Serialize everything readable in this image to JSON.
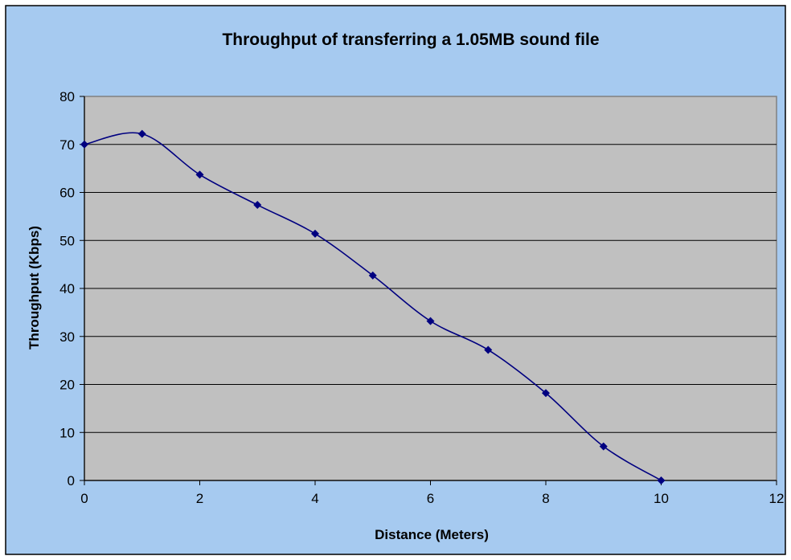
{
  "chart_data": {
    "type": "line",
    "title": "Throughput of transferring a 1.05MB sound file",
    "xlabel": "Distance (Meters)",
    "ylabel": "Throughput (Kbps)",
    "xlim": [
      0,
      12
    ],
    "ylim": [
      0,
      80
    ],
    "xticks": [
      0,
      2,
      4,
      6,
      8,
      10,
      12
    ],
    "yticks": [
      0,
      10,
      20,
      30,
      40,
      50,
      60,
      70,
      80
    ],
    "grid": "horizontal",
    "legend": "none",
    "smooth": true,
    "series": [
      {
        "x": [
          0,
          1,
          2,
          3,
          4,
          5,
          6,
          7,
          8,
          9,
          10
        ],
        "values": [
          70,
          72.2,
          63.7,
          57.4,
          51.4,
          42.7,
          33.2,
          27.2,
          18.2,
          7.1,
          0
        ]
      }
    ],
    "colors": {
      "chart_background": "#a6caf0",
      "plot_background": "#c0c0c0",
      "series_line": "#000080",
      "gridline": "#000000"
    }
  }
}
